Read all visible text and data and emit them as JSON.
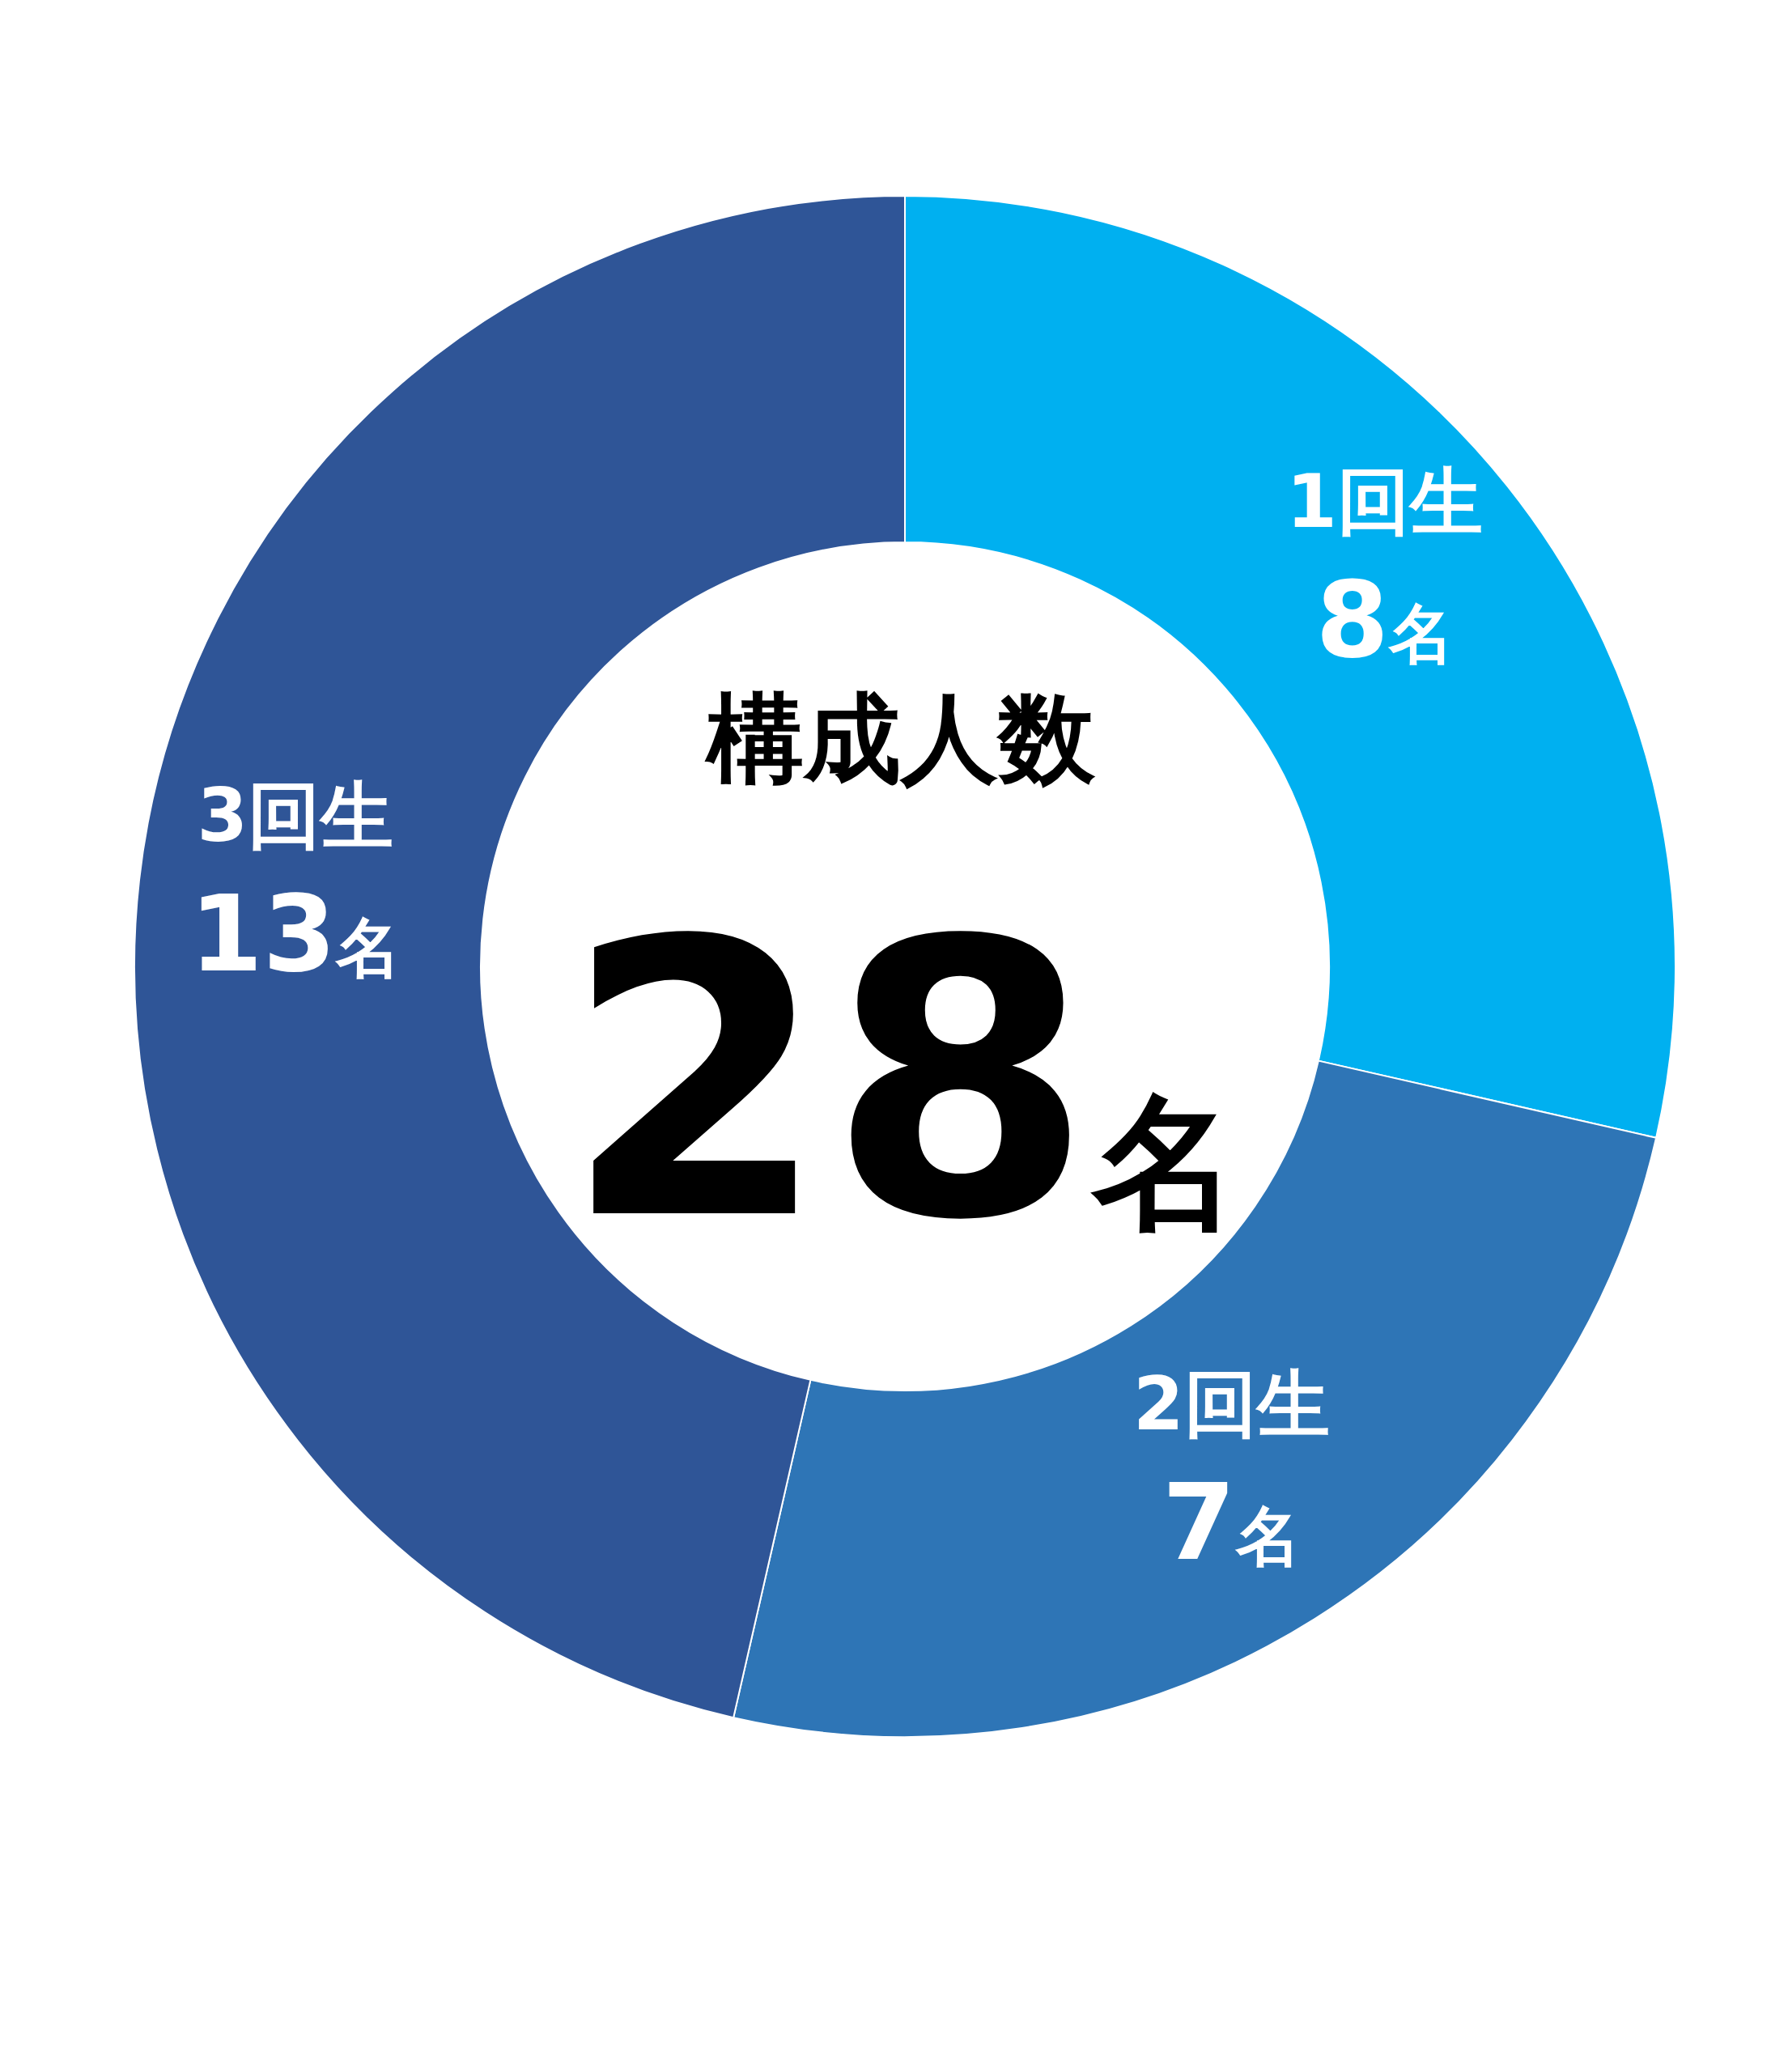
{
  "chart_data": {
    "type": "donut",
    "title": "構成人数",
    "subtitle": "28名",
    "categories": [
      "1回生",
      "2回生",
      "3回生"
    ],
    "values": [
      8,
      7,
      13
    ],
    "colors": [
      "#00b0f0",
      "#2e75b6",
      "#2f5597"
    ],
    "value_labels": [
      "8名",
      "7名",
      "13名"
    ],
    "legend": false
  }
}
